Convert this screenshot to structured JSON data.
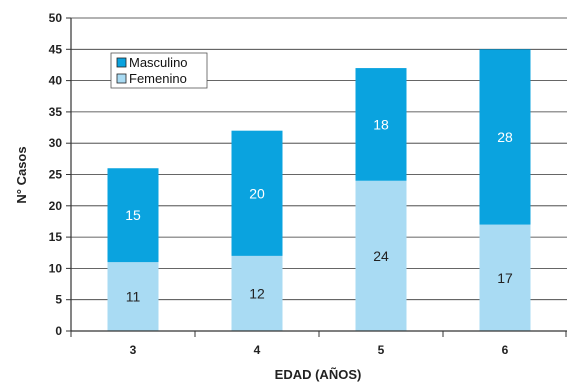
{
  "chart_data": {
    "type": "bar",
    "stacked": true,
    "categories": [
      "3",
      "4",
      "5",
      "6"
    ],
    "series": [
      {
        "name": "Femenino",
        "values": [
          11,
          12,
          24,
          17
        ],
        "color": "#a9dbf3",
        "label_color": "#222222"
      },
      {
        "name": "Masculino",
        "values": [
          15,
          20,
          18,
          28
        ],
        "color": "#0aa3df",
        "label_color": "#ffffff"
      }
    ],
    "legend_order": [
      "Masculino",
      "Femenino"
    ],
    "legend_position": "top-left",
    "xlabel": "EDAD (AÑOS)",
    "ylabel": "N° Casos",
    "ylim": [
      0,
      50
    ],
    "yticks": [
      0,
      5,
      10,
      15,
      20,
      25,
      30,
      35,
      40,
      45,
      50
    ],
    "grid": true,
    "grid_axis": "y"
  }
}
